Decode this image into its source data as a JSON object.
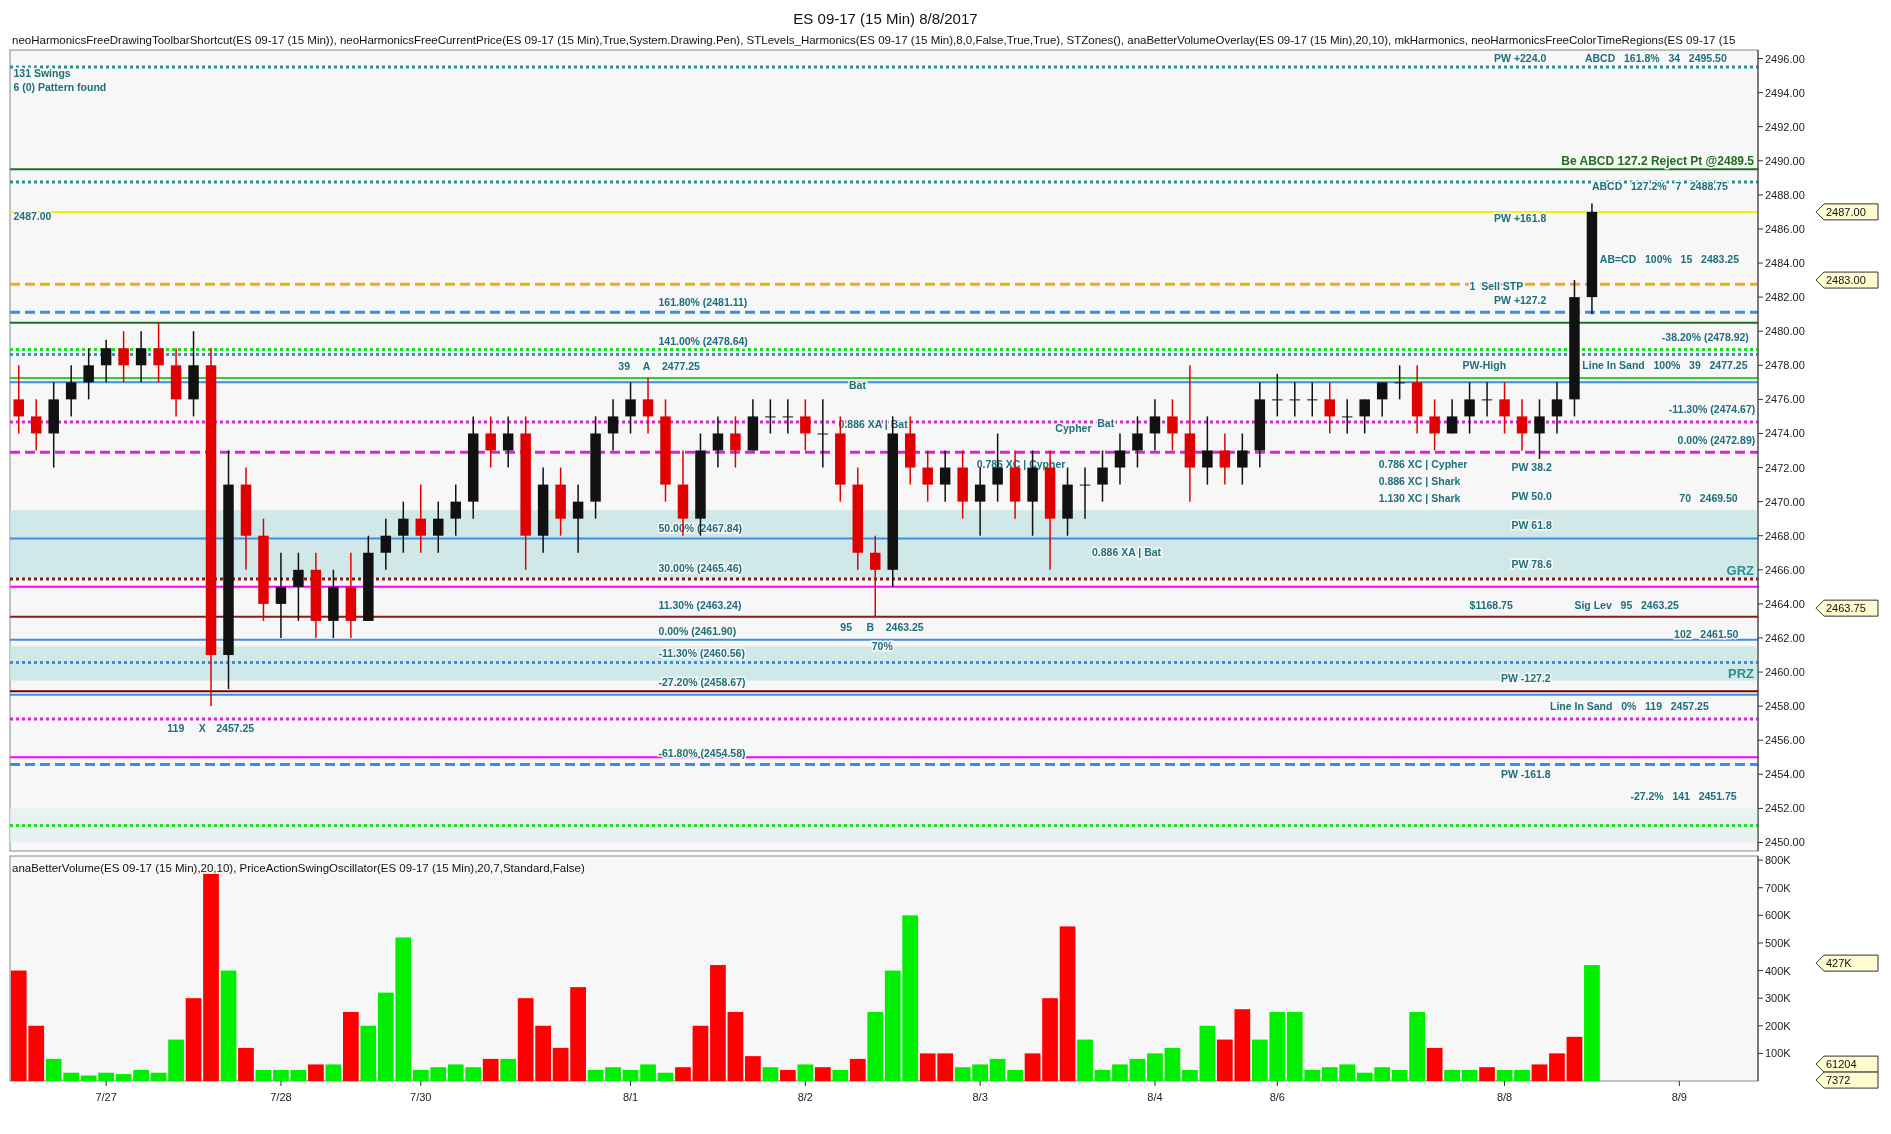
{
  "chart_data": [
    {
      "type": "candlestick",
      "title": "ES 09-17 (15 Min)  8/8/2017",
      "subtitle": "neoHarmonicsFreeDrawingToolbarShortcut(ES 09-17 (15 Min)), neoHarmonicsFreeCurrentPrice(ES 09-17 (15 Min),True,System.Drawing.Pen), STLevels_Harmonics(ES 09-17 (15 Min),8,0,False,True,True), STZones(), anaBetterVolumeOverlay(ES 09-17 (15 Min),20,10), mkHarmonics, neoHarmonicsFreeColorTimeRegions(ES 09-17 (15",
      "categories": [
        null,
        null,
        null,
        null,
        null,
        null,
        null,
        null,
        null,
        null,
        null,
        null,
        null,
        null,
        null,
        null,
        null,
        null,
        null,
        null,
        null,
        null,
        null,
        null,
        null,
        null,
        null,
        null,
        null,
        null,
        null,
        null,
        null,
        null,
        null,
        null,
        null,
        null,
        null,
        null,
        null,
        null,
        null,
        null,
        null,
        null,
        null,
        null,
        null,
        null,
        null,
        null,
        null,
        null,
        null,
        null,
        null,
        null,
        null,
        null,
        null,
        null,
        null,
        null,
        null,
        null,
        null,
        null,
        null,
        null,
        null,
        null,
        null,
        null,
        null,
        null,
        null,
        null,
        null,
        null,
        null,
        null,
        null,
        null,
        null,
        null,
        null,
        null,
        null,
        null,
        null,
        null,
        null,
        null,
        null,
        null,
        null,
        null,
        null,
        null
      ],
      "ohlc": [
        [
          2476,
          2478,
          2474,
          2475
        ],
        [
          2475,
          2476,
          2473,
          2474
        ],
        [
          2474,
          2477,
          2472,
          2476
        ],
        [
          2476,
          2478,
          2475,
          2477
        ],
        [
          2477,
          2479,
          2476,
          2478
        ],
        [
          2478,
          2479.5,
          2477,
          2479
        ],
        [
          2479,
          2480,
          2477,
          2478
        ],
        [
          2478,
          2480,
          2477,
          2479
        ],
        [
          2479,
          2480.5,
          2477,
          2478
        ],
        [
          2478,
          2479,
          2475,
          2476
        ],
        [
          2476,
          2480,
          2475,
          2478
        ],
        [
          2478,
          2479,
          2458,
          2461
        ],
        [
          2461,
          2473,
          2459,
          2471
        ],
        [
          2471,
          2472,
          2466,
          2468
        ],
        [
          2468,
          2469,
          2463,
          2464
        ],
        [
          2464,
          2467,
          2462,
          2465
        ],
        [
          2465,
          2467,
          2463,
          2466
        ],
        [
          2466,
          2467,
          2462,
          2463
        ],
        [
          2463,
          2466,
          2462,
          2465
        ],
        [
          2465,
          2467,
          2462,
          2463
        ],
        [
          2463,
          2468,
          2463,
          2467
        ],
        [
          2467,
          2469,
          2466,
          2468
        ],
        [
          2468,
          2470,
          2467,
          2469
        ],
        [
          2469,
          2471,
          2467,
          2468
        ],
        [
          2468,
          2470,
          2467,
          2469
        ],
        [
          2469,
          2471,
          2468,
          2470
        ],
        [
          2470,
          2475,
          2469,
          2474
        ],
        [
          2474,
          2475,
          2472,
          2473
        ],
        [
          2473,
          2475,
          2472,
          2474
        ],
        [
          2474,
          2475,
          2466,
          2468
        ],
        [
          2468,
          2472,
          2467,
          2471
        ],
        [
          2471,
          2472,
          2468,
          2469
        ],
        [
          2469,
          2471,
          2467,
          2470
        ],
        [
          2470,
          2475,
          2469,
          2474
        ],
        [
          2474,
          2476,
          2473,
          2475
        ],
        [
          2475,
          2477,
          2474,
          2476
        ],
        [
          2476,
          2477.25,
          2474,
          2475
        ],
        [
          2475,
          2476,
          2470,
          2471
        ],
        [
          2471,
          2473,
          2468,
          2469
        ],
        [
          2469,
          2474,
          2468,
          2473
        ],
        [
          2473,
          2475,
          2472,
          2474
        ],
        [
          2474,
          2475,
          2472,
          2473
        ],
        [
          2473,
          2476,
          2473,
          2475
        ],
        [
          2475,
          2476,
          2474,
          2475
        ],
        [
          2475,
          2476,
          2474,
          2475
        ],
        [
          2475,
          2476,
          2473,
          2474
        ],
        [
          2474,
          2476,
          2472,
          2474
        ],
        [
          2474,
          2475,
          2470,
          2471
        ],
        [
          2471,
          2472,
          2466,
          2467
        ],
        [
          2467,
          2468,
          2463.25,
          2466
        ],
        [
          2466,
          2475,
          2465,
          2474
        ],
        [
          2474,
          2475,
          2471,
          2472
        ],
        [
          2472,
          2473,
          2470,
          2471
        ],
        [
          2471,
          2473,
          2470,
          2472
        ],
        [
          2472,
          2473,
          2469,
          2470
        ],
        [
          2470,
          2472,
          2468,
          2471
        ],
        [
          2471,
          2474,
          2470,
          2472
        ],
        [
          2472,
          2473,
          2469,
          2470
        ],
        [
          2470,
          2473,
          2468,
          2472
        ],
        [
          2472,
          2473,
          2466,
          2469
        ],
        [
          2469,
          2472,
          2468,
          2471
        ],
        [
          2471,
          2472,
          2469,
          2471
        ],
        [
          2471,
          2473,
          2470,
          2472
        ],
        [
          2472,
          2474,
          2471,
          2473
        ],
        [
          2473,
          2475,
          2472,
          2474
        ],
        [
          2474,
          2476,
          2473,
          2475
        ],
        [
          2475,
          2476,
          2473,
          2474
        ],
        [
          2474,
          2478,
          2470,
          2472
        ],
        [
          2472,
          2475,
          2471,
          2473
        ],
        [
          2473,
          2474,
          2471,
          2472
        ],
        [
          2472,
          2474,
          2471,
          2473
        ],
        [
          2473,
          2477,
          2472,
          2476
        ],
        [
          2476,
          2477.5,
          2475,
          2476
        ],
        [
          2476,
          2477,
          2475,
          2476
        ],
        [
          2476,
          2477,
          2475,
          2476
        ],
        [
          2476,
          2477,
          2474,
          2475
        ],
        [
          2475,
          2476,
          2474,
          2475
        ],
        [
          2475,
          2476,
          2474,
          2476
        ],
        [
          2476,
          2477,
          2475,
          2477
        ],
        [
          2477,
          2478,
          2476,
          2477
        ],
        [
          2477,
          2478,
          2474,
          2475
        ],
        [
          2475,
          2476,
          2473,
          2474
        ],
        [
          2474,
          2476,
          2474,
          2475
        ],
        [
          2475,
          2477,
          2474,
          2476
        ],
        [
          2476,
          2477,
          2475,
          2476
        ],
        [
          2476,
          2477,
          2474,
          2475
        ],
        [
          2475,
          2476,
          2473,
          2474
        ],
        [
          2474,
          2476,
          2472.5,
          2475
        ],
        [
          2475,
          2477,
          2474,
          2476
        ],
        [
          2476,
          2483,
          2475,
          2482
        ],
        [
          2482,
          2487.5,
          2481,
          2487
        ],
        null,
        null,
        null,
        null,
        null,
        null,
        null,
        null,
        null
      ],
      "ylim": [
        2449.5,
        2496.5
      ],
      "yticks": [
        {
          "value": 2450,
          "label": "2450.00"
        },
        {
          "value": 2452,
          "label": "2452.00"
        },
        {
          "value": 2454,
          "label": "2454.00"
        },
        {
          "value": 2456,
          "label": "2456.00"
        },
        {
          "value": 2458,
          "label": "2458.00"
        },
        {
          "value": 2460,
          "label": "2460.00"
        },
        {
          "value": 2462,
          "label": "2462.00"
        },
        {
          "value": 2464,
          "label": "2464.00"
        },
        {
          "value": 2466,
          "label": "2466.00"
        },
        {
          "value": 2468,
          "label": "2468.00"
        },
        {
          "value": 2470,
          "label": "2470.00"
        },
        {
          "value": 2472,
          "label": "2472.00"
        },
        {
          "value": 2474,
          "label": "2474.00"
        },
        {
          "value": 2476,
          "label": "2476.00"
        },
        {
          "value": 2478,
          "label": "2478.00"
        },
        {
          "value": 2480,
          "label": "2480.00"
        },
        {
          "value": 2482,
          "label": "2482.00"
        },
        {
          "value": 2484,
          "label": "2484.00"
        },
        {
          "value": 2486,
          "label": "2486.00"
        },
        {
          "value": 2488,
          "label": "2488.00"
        },
        {
          "value": 2490,
          "label": "2490.00"
        },
        {
          "value": 2492,
          "label": "2492.00"
        },
        {
          "value": 2494,
          "label": "2494.00"
        },
        {
          "value": 2496,
          "label": "2496.00"
        }
      ],
      "tick_labels": "y",
      "bands": [
        {
          "axis": "y",
          "from": 2465.5,
          "to": 2469.5,
          "color": "#c5e3e3",
          "label": "GRZ"
        },
        {
          "axis": "y",
          "from": 2459.5,
          "to": 2461.5,
          "color": "#c5e3e3",
          "label": "PRZ"
        },
        {
          "axis": "y",
          "from": 2450,
          "to": 2452,
          "color": "#e3f0f0"
        }
      ],
      "ref_lines": [
        {
          "axis": "y",
          "value": 2495.5,
          "color": "#2a8f8f",
          "line_style": "dotted"
        },
        {
          "axis": "y",
          "value": 2489.5,
          "color": "#1f6e1f",
          "line_style": "solid",
          "label": "Be ABCD 127.2 Reject Pt @2489.5"
        },
        {
          "axis": "y",
          "value": 2488.75,
          "color": "#2a8f8f",
          "line_style": "dotted"
        },
        {
          "axis": "y",
          "value": 2487,
          "color": "#f2f200",
          "line_style": "solid"
        },
        {
          "axis": "y",
          "value": 2482.75,
          "color": "#f5a623",
          "line_style": "dashed"
        },
        {
          "axis": "y",
          "value": 2481.11,
          "color": "#3c8ee0",
          "line_style": "dashed"
        },
        {
          "axis": "y",
          "value": 2480.5,
          "color": "#1f6e1f",
          "line_style": "solid"
        },
        {
          "axis": "y",
          "value": 2478.92,
          "color": "#22dd22",
          "line_style": "dotted"
        },
        {
          "axis": "y",
          "value": 2478.64,
          "color": "#3c8ee0",
          "line_style": "dotted"
        },
        {
          "axis": "y",
          "value": 2477.25,
          "color": "#33cc33",
          "line_style": "solid"
        },
        {
          "axis": "y",
          "value": 2477,
          "color": "#3c8ee0",
          "line_style": "solid"
        },
        {
          "axis": "y",
          "value": 2474.67,
          "color": "#dd22dd",
          "line_style": "dotted"
        },
        {
          "axis": "y",
          "value": 2472.89,
          "color": "#dd22dd",
          "line_style": "dashed"
        },
        {
          "axis": "y",
          "value": 2467.84,
          "color": "#3c8ee0",
          "line_style": "solid"
        },
        {
          "axis": "y",
          "value": 2465.46,
          "color": "#8b1a1a",
          "line_style": "dotted"
        },
        {
          "axis": "y",
          "value": 2465,
          "color": "#ff00ff",
          "line_style": "solid"
        },
        {
          "axis": "y",
          "value": 2463.24,
          "color": "#8b1a1a",
          "line_style": "solid"
        },
        {
          "axis": "y",
          "value": 2461.9,
          "color": "#3c8ee0",
          "line_style": "solid"
        },
        {
          "axis": "y",
          "value": 2460.56,
          "color": "#3c8ee0",
          "line_style": "dotted"
        },
        {
          "axis": "y",
          "value": 2458.87,
          "color": "#7a0000",
          "line_style": "solid"
        },
        {
          "axis": "y",
          "value": 2458.67,
          "color": "#3c8ee0",
          "line_style": "solid"
        },
        {
          "axis": "y",
          "value": 2457.25,
          "color": "#dd22dd",
          "line_style": "dotted"
        },
        {
          "axis": "y",
          "value": 2455,
          "color": "#ff00ff",
          "line_style": "solid"
        },
        {
          "axis": "y",
          "value": 2454.58,
          "color": "#3c8ee0",
          "line_style": "dashed"
        },
        {
          "axis": "y",
          "value": 2451,
          "color": "#22dd22",
          "line_style": "dotted"
        }
      ],
      "annotations": [
        "131 Swings",
        "6 (0) Pattern found",
        "2487.00",
        "PW +224.0",
        "ABCD   161.8%   34   2495.50",
        "ABCD   127.2%   7   2488.75",
        "PW +161.8",
        "AB=CD   100%   15   2483.25",
        "1  Sell STP",
        "PW +127.2",
        "-38.20% (2478.92)",
        "PW-High",
        "Line In Sand   100%   39   2477.25",
        "-11.30% (2474.67)",
        "0.00% (2472.89)",
        "PW 38.2",
        "PW 50.0",
        "PW 61.8",
        "70   2469.50",
        "PW 78.6",
        "$1168.75",
        "Sig Lev   95   2463.25",
        "102   2461.50",
        "PW -127.2",
        "Line In Sand   0%   119   2457.25",
        "PW -161.8",
        "-27.2%   141   2451.75",
        "39",
        "A",
        "2477.25",
        "161.80% (2481.11)",
        "141.00% (2478.64)",
        "50.00% (2467.84)",
        "30.00% (2465.46)",
        "11.30% (2463.24)",
        "0.00% (2461.90)",
        "-11.30% (2460.56)",
        "-27.20% (2458.67)",
        "-61.80% (2454.58)",
        "95",
        "B",
        "2463.25",
        "70%",
        "119",
        "X",
        "2457.25",
        "Bat",
        "0.886 XA | Bat",
        "Cypher",
        "Bat",
        "0.786 XC | Cypher",
        "0.886 XA | Bat",
        "0.786 XC | Cypher",
        "0.886 XC | Shark",
        "1.130 XC | Shark",
        "2487.00",
        "2483.00",
        "2463.75"
      ]
    },
    {
      "type": "bar",
      "subtitle": "anaBetterVolume(ES 09-17 (15 Min),20,10), PriceActionSwingOscillator(ES 09-17 (15 Min),20,7,Standard,False)",
      "categories": [
        null,
        null,
        null,
        null,
        null,
        "7/27",
        null,
        null,
        null,
        null,
        null,
        null,
        null,
        null,
        null,
        "7/28",
        null,
        null,
        null,
        null,
        null,
        null,
        null,
        "7/30",
        null,
        null,
        null,
        null,
        null,
        null,
        null,
        null,
        null,
        null,
        null,
        "8/1",
        null,
        null,
        null,
        null,
        null,
        null,
        null,
        null,
        null,
        "8/2",
        null,
        null,
        null,
        null,
        null,
        null,
        null,
        null,
        null,
        "8/3",
        null,
        null,
        null,
        null,
        null,
        null,
        null,
        null,
        null,
        "8/4",
        null,
        null,
        null,
        null,
        null,
        null,
        "8/6",
        null,
        null,
        null,
        null,
        null,
        null,
        null,
        null,
        null,
        null,
        null,
        null,
        "8/8",
        null,
        null,
        null,
        null,
        null,
        null,
        null,
        null,
        null,
        "8/9",
        null,
        null,
        null,
        null
      ],
      "values": [
        400,
        200,
        80,
        30,
        20,
        30,
        25,
        40,
        30,
        150,
        300,
        750,
        400,
        120,
        40,
        40,
        40,
        60,
        60,
        250,
        200,
        320,
        520,
        40,
        50,
        60,
        50,
        80,
        80,
        300,
        200,
        120,
        340,
        40,
        50,
        40,
        60,
        30,
        50,
        200,
        420,
        250,
        90,
        50,
        40,
        60,
        50,
        40,
        80,
        250,
        400,
        600,
        100,
        100,
        50,
        60,
        80,
        40,
        100,
        300,
        560,
        150,
        40,
        60,
        80,
        100,
        120,
        40,
        200,
        150,
        260,
        150,
        250,
        250,
        40,
        50,
        60,
        30,
        50,
        40,
        250,
        120,
        40,
        40,
        50,
        40,
        40,
        60,
        100,
        160,
        420,
        null,
        null,
        null,
        null,
        null,
        null,
        null,
        null,
        null
      ],
      "colors": [
        "#ff0000",
        "#ff0000",
        "#00ee00",
        "#00ee00",
        "#00ee00",
        "#00ee00",
        "#00ee00",
        "#00ee00",
        "#00ee00",
        "#00ee00",
        "#ff0000",
        "#ff0000",
        "#00ee00",
        "#ff0000",
        "#00ee00",
        "#00ee00",
        "#00ee00",
        "#ff0000",
        "#00ee00",
        "#ff0000",
        "#00ee00",
        "#00ee00",
        "#00ee00",
        "#00ee00",
        "#00ee00",
        "#00ee00",
        "#00ee00",
        "#ff0000",
        "#00ee00",
        "#ff0000",
        "#ff0000",
        "#ff0000",
        "#ff0000",
        "#00ee00",
        "#00ee00",
        "#00ee00",
        "#00ee00",
        "#00ee00",
        "#ff0000",
        "#ff0000",
        "#ff0000",
        "#ff0000",
        "#ff0000",
        "#00ee00",
        "#ff0000",
        "#00ee00",
        "#ff0000",
        "#00ee00",
        "#ff0000",
        "#00ee00",
        "#00ee00",
        "#00ee00",
        "#ff0000",
        "#ff0000",
        "#00ee00",
        "#00ee00",
        "#00ee00",
        "#00ee00",
        "#ff0000",
        "#ff0000",
        "#ff0000",
        "#00ee00",
        "#00ee00",
        "#00ee00",
        "#00ee00",
        "#00ee00",
        "#00ee00",
        "#00ee00",
        "#00ee00",
        "#ff0000",
        "#ff0000",
        "#00ee00",
        "#00ee00",
        "#00ee00",
        "#00ee00",
        "#00ee00",
        "#00ee00",
        "#00ee00",
        "#00ee00",
        "#00ee00",
        "#00ee00",
        "#ff0000",
        "#00ee00",
        "#00ee00",
        "#ff0000",
        "#00ee00",
        "#00ee00",
        "#ff0000",
        "#ff0000",
        "#ff0000",
        "#00ee00",
        null,
        null,
        null,
        null,
        null,
        null,
        null,
        null,
        null
      ],
      "ylim": [
        0,
        815
      ],
      "yticks": [
        {
          "value": 100,
          "label": "100K"
        },
        {
          "value": 200,
          "label": "200K"
        },
        {
          "value": 300,
          "label": "300K"
        },
        {
          "value": 400,
          "label": "400K"
        },
        {
          "value": 500,
          "label": "500K"
        },
        {
          "value": 600,
          "label": "600K"
        },
        {
          "value": 700,
          "label": "700K"
        },
        {
          "value": 800,
          "label": "800K"
        }
      ],
      "annotations": [
        "427K",
        "61204",
        "7372"
      ]
    }
  ]
}
